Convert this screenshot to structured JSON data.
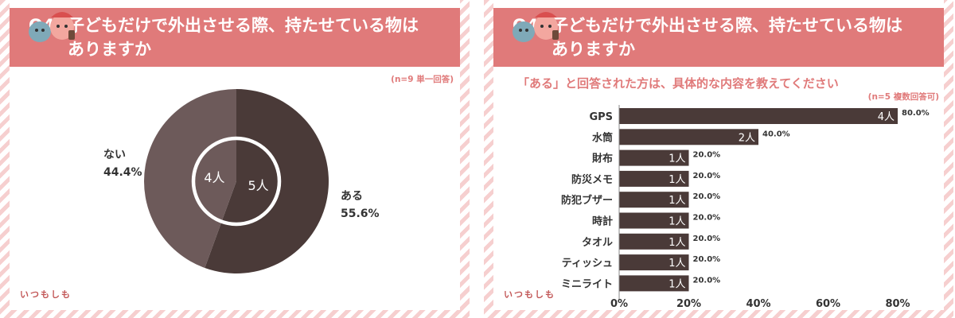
{
  "left": {
    "title_q": "Q4.",
    "title_line1": "子どもだけで外出させる際、持たせている物は",
    "title_line2": "ありますか",
    "note": "(n=9 単一回答)",
    "mascot_text": "いつもしも"
  },
  "right": {
    "title_q": "Q4.",
    "title_line1": "子どもだけで外出させる際、持たせている物は",
    "title_line2": "ありますか",
    "subtitle": "「ある」と回答された方は、具体的な内容を教えてください",
    "note": "(n=5 複数回答可)",
    "mascot_text": "いつもしも"
  },
  "chart_data": [
    {
      "type": "pie",
      "title": "Q4. 子どもだけで外出させる際、持たせている物はありますか",
      "slices": [
        {
          "label": "ある",
          "count_label": "5人",
          "value": 5,
          "percent_label": "55.6%",
          "color": "#4a3a38"
        },
        {
          "label": "ない",
          "count_label": "4人",
          "value": 4,
          "percent_label": "44.4%",
          "color": "#6d5a5a"
        }
      ]
    },
    {
      "type": "bar",
      "orientation": "horizontal",
      "title": "「ある」と回答された方は、具体的な内容を教えてください",
      "categories": [
        "GPS",
        "水筒",
        "財布",
        "防災メモ",
        "防犯ブザー",
        "時計",
        "タオル",
        "ティッシュ",
        "ミニライト"
      ],
      "values": [
        80.0,
        40.0,
        20.0,
        20.0,
        20.0,
        20.0,
        20.0,
        20.0,
        20.0
      ],
      "count_labels": [
        "4人",
        "2人",
        "1人",
        "1人",
        "1人",
        "1人",
        "1人",
        "1人",
        "1人"
      ],
      "percent_labels": [
        "80.0%",
        "40.0%",
        "20.0%",
        "20.0%",
        "20.0%",
        "20.0%",
        "20.0%",
        "20.0%",
        "20.0%"
      ],
      "x_ticks": [
        "0%",
        "20%",
        "40%",
        "60%",
        "80%"
      ],
      "xlim": [
        0,
        80
      ],
      "bar_color": "#4a3a38",
      "grid": false
    }
  ],
  "colors": {
    "accent": "#e07a7a",
    "dark": "#4a3a38",
    "medium": "#6d5a5a"
  }
}
